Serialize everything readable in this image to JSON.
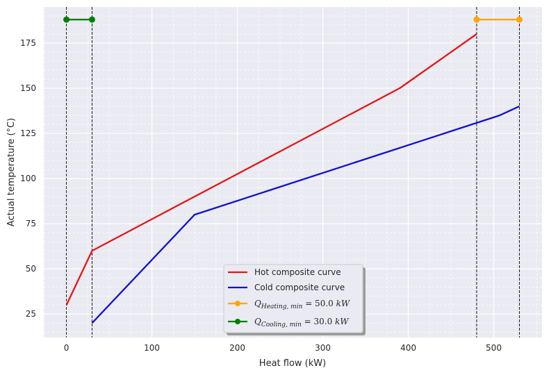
{
  "chart_data": {
    "type": "line",
    "xlabel": "Heat flow (kW)",
    "ylabel": "Actual temperature (°C)",
    "xlim": [
      -26.5,
      556.5
    ],
    "ylim": [
      12,
      195
    ],
    "xticks": [
      0,
      100,
      200,
      300,
      400,
      500
    ],
    "yticks": [
      25,
      50,
      75,
      100,
      125,
      150,
      175
    ],
    "grid": true,
    "legend_position": "bottom-center",
    "series": [
      {
        "name": "Hot composite curve",
        "color": "#e61515",
        "points": [
          [
            0,
            30
          ],
          [
            30,
            60
          ],
          [
            390,
            150
          ],
          [
            480,
            180
          ]
        ]
      },
      {
        "name": "Cold composite curve",
        "color": "#1010d6",
        "points": [
          [
            30,
            20
          ],
          [
            150,
            80
          ],
          [
            507,
            135
          ],
          [
            530,
            140
          ]
        ]
      },
      {
        "name_main": "Q",
        "name_sub": "Heating, min",
        "name_rest": " = 50.0 ",
        "name_unit": "kW",
        "color": "#ffa500",
        "markers": true,
        "points": [
          [
            480,
            188
          ],
          [
            530,
            188
          ]
        ]
      },
      {
        "name_main": "Q",
        "name_sub": "Cooling, min",
        "name_rest": " = 30.0 ",
        "name_unit": "kW",
        "color": "#008000",
        "markers": true,
        "points": [
          [
            0,
            188
          ],
          [
            30,
            188
          ]
        ]
      }
    ],
    "vlines": [
      0,
      30,
      480,
      530
    ]
  }
}
